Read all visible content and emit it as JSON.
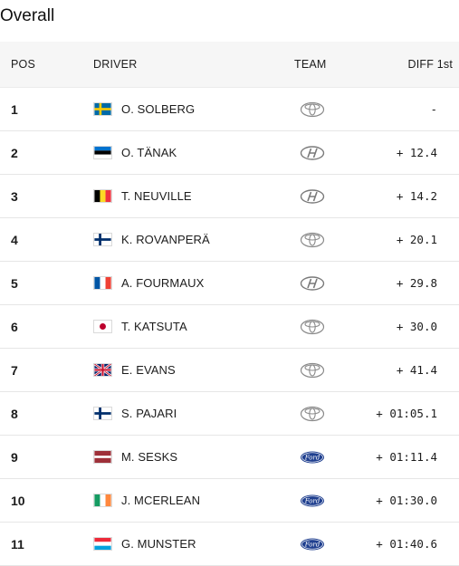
{
  "title": "Overall",
  "columns": {
    "pos": "POS",
    "driver": "DRIVER",
    "team": "TEAM",
    "diff": "DIFF 1st"
  },
  "rows": [
    {
      "pos": "1",
      "driver": "O. SOLBERG",
      "flag": "sweden",
      "team": "toyota-logo",
      "diff": "-"
    },
    {
      "pos": "2",
      "driver": "O. TÄNAK",
      "flag": "estonia",
      "team": "hyundai-logo",
      "diff": "+ 12.4"
    },
    {
      "pos": "3",
      "driver": "T. NEUVILLE",
      "flag": "belgium",
      "team": "hyundai-logo",
      "diff": "+ 14.2"
    },
    {
      "pos": "4",
      "driver": "K. ROVANPERÄ",
      "flag": "finland",
      "team": "toyota-logo",
      "diff": "+ 20.1"
    },
    {
      "pos": "5",
      "driver": "A. FOURMAUX",
      "flag": "france",
      "team": "hyundai-logo",
      "diff": "+ 29.8"
    },
    {
      "pos": "6",
      "driver": "T. KATSUTA",
      "flag": "japan",
      "team": "toyota-logo",
      "diff": "+ 30.0"
    },
    {
      "pos": "7",
      "driver": "E. EVANS",
      "flag": "uk",
      "team": "toyota-logo",
      "diff": "+ 41.4"
    },
    {
      "pos": "8",
      "driver": "S. PAJARI",
      "flag": "finland",
      "team": "toyota-logo",
      "diff": "+ 01:05.1"
    },
    {
      "pos": "9",
      "driver": "M. SESKS",
      "flag": "latvia",
      "team": "ford-logo",
      "diff": "+ 01:11.4"
    },
    {
      "pos": "10",
      "driver": "J. MCERLEAN",
      "flag": "ireland",
      "team": "ford-logo",
      "diff": "+ 01:30.0"
    },
    {
      "pos": "11",
      "driver": "G. MUNSTER",
      "flag": "luxembourg",
      "team": "ford-logo",
      "diff": "+ 01:40.6"
    }
  ]
}
